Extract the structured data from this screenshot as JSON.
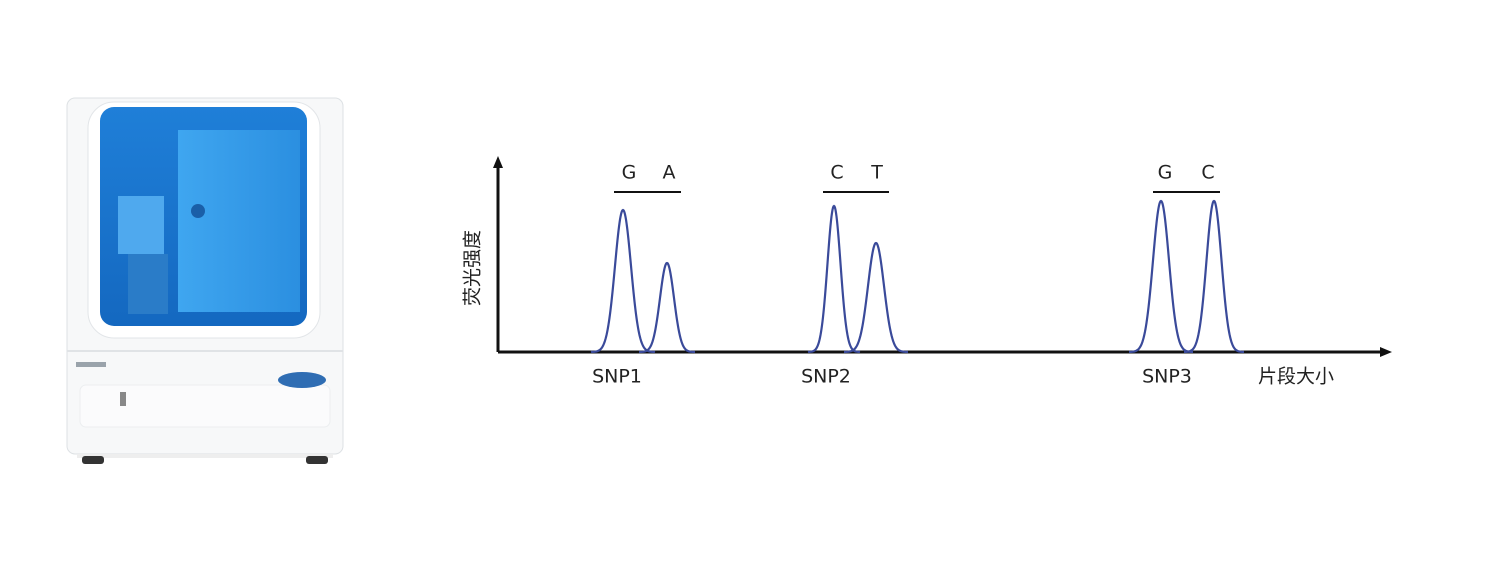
{
  "diagram": {
    "y_axis_label": "荧光强度",
    "x_axis_label": "片段大小",
    "snps": [
      {
        "label": "SNP1",
        "alleles": [
          "G",
          "A"
        ]
      },
      {
        "label": "SNP2",
        "alleles": [
          "C",
          "T"
        ]
      },
      {
        "label": "SNP3",
        "alleles": [
          "G",
          "C"
        ]
      }
    ]
  }
}
